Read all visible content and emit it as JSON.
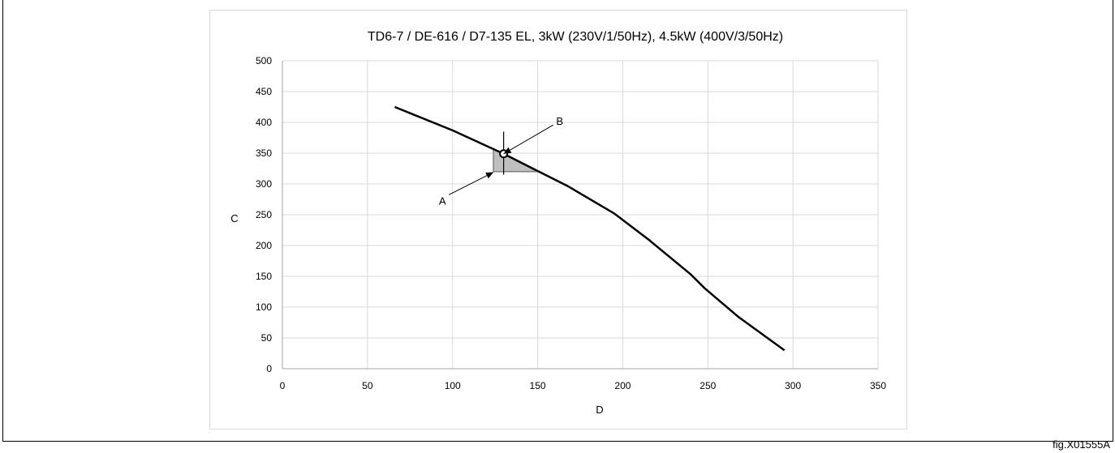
{
  "figure_code": "fig.X01555A",
  "chart_data": {
    "type": "line",
    "title": "TD6-7 / DE-616 / D7-135 EL, 3kW (230V/1/50Hz), 4.5kW (400V/3/50Hz)",
    "xlabel": "D",
    "ylabel": "C",
    "xlim": [
      0,
      350
    ],
    "ylim": [
      0,
      500
    ],
    "x_ticks": [
      "0",
      "50",
      "100",
      "150",
      "200",
      "250",
      "300",
      "350"
    ],
    "y_ticks": [
      "0",
      "50",
      "100",
      "150",
      "200",
      "250",
      "300",
      "350",
      "400",
      "450",
      "500"
    ],
    "grid": true,
    "legend": "none",
    "series": [
      {
        "x": [
          66,
          100,
          130,
          150,
          168,
          195,
          215,
          240,
          248,
          268,
          295
        ],
        "y": [
          425,
          387,
          349,
          321,
          296,
          252,
          210,
          153,
          131,
          84,
          30
        ]
      }
    ],
    "shaded_region": {
      "x": [
        124,
        124,
        130,
        150
      ],
      "y": [
        320,
        357,
        349,
        320
      ]
    },
    "annotations": [
      {
        "label": "A",
        "point": [
          124,
          319
        ],
        "text_at": [
          95,
          272
        ]
      },
      {
        "label": "B",
        "point": [
          130,
          349
        ],
        "text_at": [
          162,
          401
        ]
      }
    ],
    "marker": {
      "x": 130,
      "y": 349,
      "vline": [
        315,
        385
      ]
    },
    "colors": {
      "line": "#000000",
      "grid": "#d9d9d9",
      "shade": "#bfbfbf",
      "shade_edge": "#7f7f7f"
    }
  }
}
